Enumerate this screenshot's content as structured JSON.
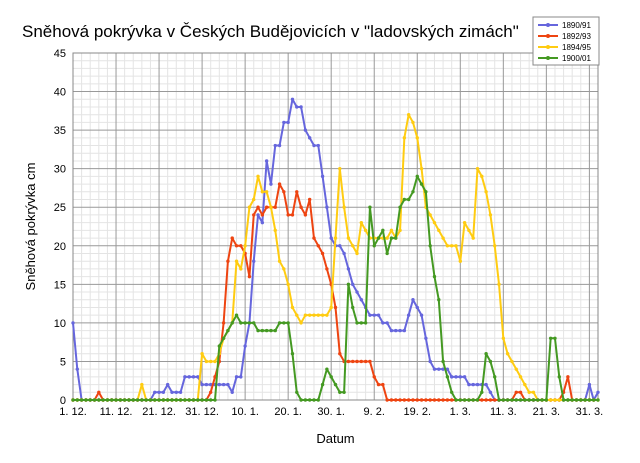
{
  "chart_data": {
    "type": "line",
    "title": "Sněhová pokrývka v Českých Budějovicích v \"ladovských zimách\"",
    "xlabel": "Datum",
    "ylabel": "Sněhová pokrývka cm",
    "ylim": [
      0,
      45
    ],
    "yticks": [
      0,
      5,
      10,
      15,
      20,
      25,
      30,
      35,
      40,
      45
    ],
    "xlim_days": [
      0,
      122
    ],
    "x_tick_labels": [
      "1. 12.",
      "11. 12.",
      "21. 12.",
      "31. 12.",
      "10. 1.",
      "20. 1.",
      "30. 1.",
      "9. 2.",
      "19. 2.",
      "1. 3.",
      "11. 3.",
      "21. 3.",
      "31. 3."
    ],
    "grid": true,
    "legend_position": "top-right",
    "series": [
      {
        "name": "1890/91",
        "color": "#6666dd",
        "values": [
          10,
          4,
          0,
          0,
          0,
          0,
          0,
          0,
          0,
          0,
          0,
          0,
          0,
          0,
          0,
          0,
          0,
          0,
          0,
          1,
          1,
          1,
          2,
          1,
          1,
          1,
          3,
          3,
          3,
          3,
          2,
          2,
          2,
          2,
          2,
          2,
          2,
          1,
          3,
          3,
          7,
          10,
          18,
          24,
          23,
          31,
          28,
          33,
          33,
          36,
          36,
          39,
          38,
          38,
          35,
          34,
          33,
          33,
          29,
          25,
          21,
          20,
          20,
          19,
          17,
          15,
          14,
          13,
          12,
          11,
          11,
          11,
          10,
          10,
          9,
          9,
          9,
          9,
          11,
          13,
          12,
          11,
          8,
          5,
          4,
          4,
          4,
          4,
          3,
          3,
          3,
          3,
          2,
          2,
          2,
          2,
          2,
          1,
          0,
          0,
          0,
          0,
          0,
          0,
          0,
          0,
          0,
          0,
          0,
          0,
          0,
          0,
          0,
          0,
          0,
          0,
          0,
          0,
          0,
          0,
          2,
          0,
          1
        ]
      },
      {
        "name": "1892/93",
        "color": "#ee4411",
        "values": [
          0,
          0,
          0,
          0,
          0,
          0,
          1,
          0,
          0,
          0,
          0,
          0,
          0,
          0,
          0,
          0,
          0,
          0,
          0,
          0,
          0,
          0,
          0,
          0,
          0,
          0,
          0,
          0,
          0,
          0,
          0,
          0,
          1,
          3,
          5,
          10,
          18,
          21,
          20,
          20,
          19,
          16,
          24,
          25,
          24,
          25,
          25,
          25,
          28,
          27,
          24,
          24,
          27,
          25,
          24,
          26,
          21,
          20,
          19,
          17,
          15,
          12,
          6,
          5,
          5,
          5,
          5,
          5,
          5,
          5,
          3,
          2,
          2,
          0,
          0,
          0,
          0,
          0,
          0,
          0,
          0,
          0,
          0,
          0,
          0,
          0,
          0,
          0,
          0,
          0,
          0,
          0,
          0,
          0,
          0,
          0,
          0,
          0,
          0,
          0,
          0,
          0,
          0,
          1,
          1,
          0,
          0,
          0,
          0,
          0,
          0,
          0,
          0,
          0,
          1,
          3,
          0,
          0,
          0,
          0,
          0,
          0
        ]
      },
      {
        "name": "1894/95",
        "color": "#ffcc11",
        "values": [
          0,
          0,
          0,
          0,
          0,
          0,
          0,
          0,
          0,
          0,
          0,
          0,
          0,
          0,
          0,
          0,
          2,
          0,
          0,
          0,
          0,
          0,
          0,
          0,
          0,
          0,
          0,
          0,
          0,
          0,
          6,
          5,
          5,
          5,
          6,
          8,
          9,
          10,
          18,
          17,
          20,
          25,
          26,
          29,
          27,
          27,
          25,
          22,
          18,
          17,
          15,
          12,
          11,
          10,
          11,
          11,
          11,
          11,
          11,
          11,
          12,
          21,
          30,
          25,
          21,
          20,
          19,
          23,
          22,
          21,
          21,
          21,
          21,
          21,
          22,
          21,
          22,
          34,
          37,
          36,
          34,
          30,
          25,
          24,
          23,
          22,
          21,
          20,
          20,
          20,
          18,
          23,
          22,
          21,
          30,
          29,
          27,
          24,
          20,
          15,
          8,
          6,
          5,
          4,
          3,
          2,
          1,
          1,
          0,
          0,
          0,
          0,
          0,
          0,
          0,
          0,
          0,
          0,
          0,
          0,
          0,
          0,
          0
        ]
      },
      {
        "name": "1900/01",
        "color": "#449922",
        "values": [
          0,
          0,
          0,
          0,
          0,
          0,
          0,
          0,
          0,
          0,
          0,
          0,
          0,
          0,
          0,
          0,
          0,
          0,
          0,
          0,
          0,
          0,
          0,
          0,
          0,
          0,
          0,
          0,
          0,
          0,
          0,
          0,
          0,
          0,
          7,
          8,
          9,
          10,
          11,
          10,
          10,
          10,
          10,
          9,
          9,
          9,
          9,
          9,
          10,
          10,
          10,
          6,
          1,
          0,
          0,
          0,
          0,
          0,
          2,
          4,
          3,
          2,
          1,
          1,
          15,
          12,
          10,
          10,
          10,
          25,
          20,
          21,
          22,
          19,
          21,
          21,
          25,
          26,
          26,
          27,
          29,
          28,
          27,
          20,
          16,
          13,
          5,
          3,
          1,
          0,
          0,
          0,
          0,
          0,
          0,
          1,
          6,
          5,
          3,
          0,
          0,
          0,
          0,
          0,
          0,
          0,
          0,
          0,
          0,
          0,
          0,
          8,
          8,
          3,
          0,
          0,
          0,
          0,
          0,
          0,
          0,
          0,
          0
        ]
      }
    ]
  }
}
